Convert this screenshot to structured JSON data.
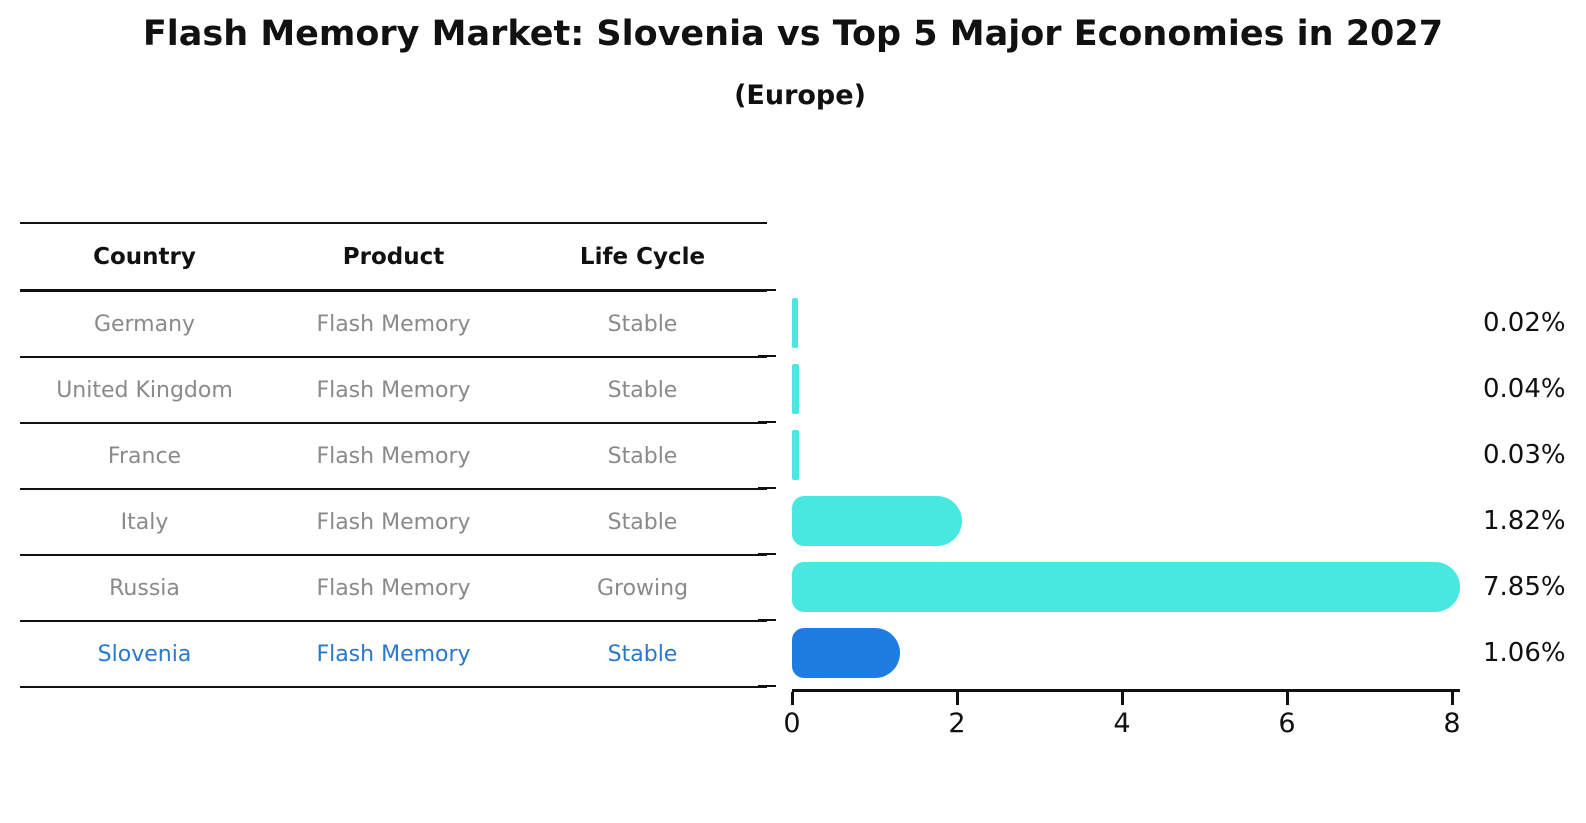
{
  "title": "Flash Memory Market: Slovenia vs Top 5 Major Economies in 2027",
  "subtitle": "(Europe)",
  "table": {
    "headers": [
      "Country",
      "Product",
      "Life Cycle"
    ],
    "rows": [
      {
        "country": "Germany",
        "product": "Flash Memory",
        "life_cycle": "Stable",
        "highlight": false
      },
      {
        "country": "United Kingdom",
        "product": "Flash Memory",
        "life_cycle": "Stable",
        "highlight": false
      },
      {
        "country": "France",
        "product": "Flash Memory",
        "life_cycle": "Stable",
        "highlight": false
      },
      {
        "country": "Italy",
        "product": "Flash Memory",
        "life_cycle": "Stable",
        "highlight": false
      },
      {
        "country": "Russia",
        "product": "Flash Memory",
        "life_cycle": "Growing",
        "highlight": false
      },
      {
        "country": "Slovenia",
        "product": "Flash Memory",
        "life_cycle": "Stable",
        "highlight": true
      }
    ]
  },
  "chart_data": {
    "type": "bar",
    "orientation": "horizontal",
    "title": "Flash Memory Market: Slovenia vs Top 5 Major Economies in 2027",
    "subtitle": "(Europe)",
    "categories": [
      "Germany",
      "United Kingdom",
      "France",
      "Italy",
      "Russia",
      "Slovenia"
    ],
    "values": [
      0.02,
      0.04,
      0.03,
      1.82,
      7.85,
      1.06
    ],
    "value_labels": [
      "0.02%",
      "0.04%",
      "0.03%",
      "1.82%",
      "7.85%",
      "1.06%"
    ],
    "x_ticks": [
      0,
      2,
      4,
      6,
      8
    ],
    "x_tick_labels": [
      "0",
      "2",
      "4",
      "6",
      "8"
    ],
    "xlim": [
      0,
      8.1
    ],
    "grid": false,
    "legend_position": "table-left",
    "bar_color": "#48E8E1",
    "highlight_color": "#1F7CE0",
    "highlight_index": 5,
    "highlight_style": "dotted-border"
  },
  "colors": {
    "background": "#ffffff",
    "text_primary": "#111111",
    "text_muted": "#8A8A8A",
    "text_highlight": "#2878CC",
    "bar_cyan": "#48E8E1",
    "bar_blue": "#1F7CE0",
    "axis": "#111111"
  }
}
